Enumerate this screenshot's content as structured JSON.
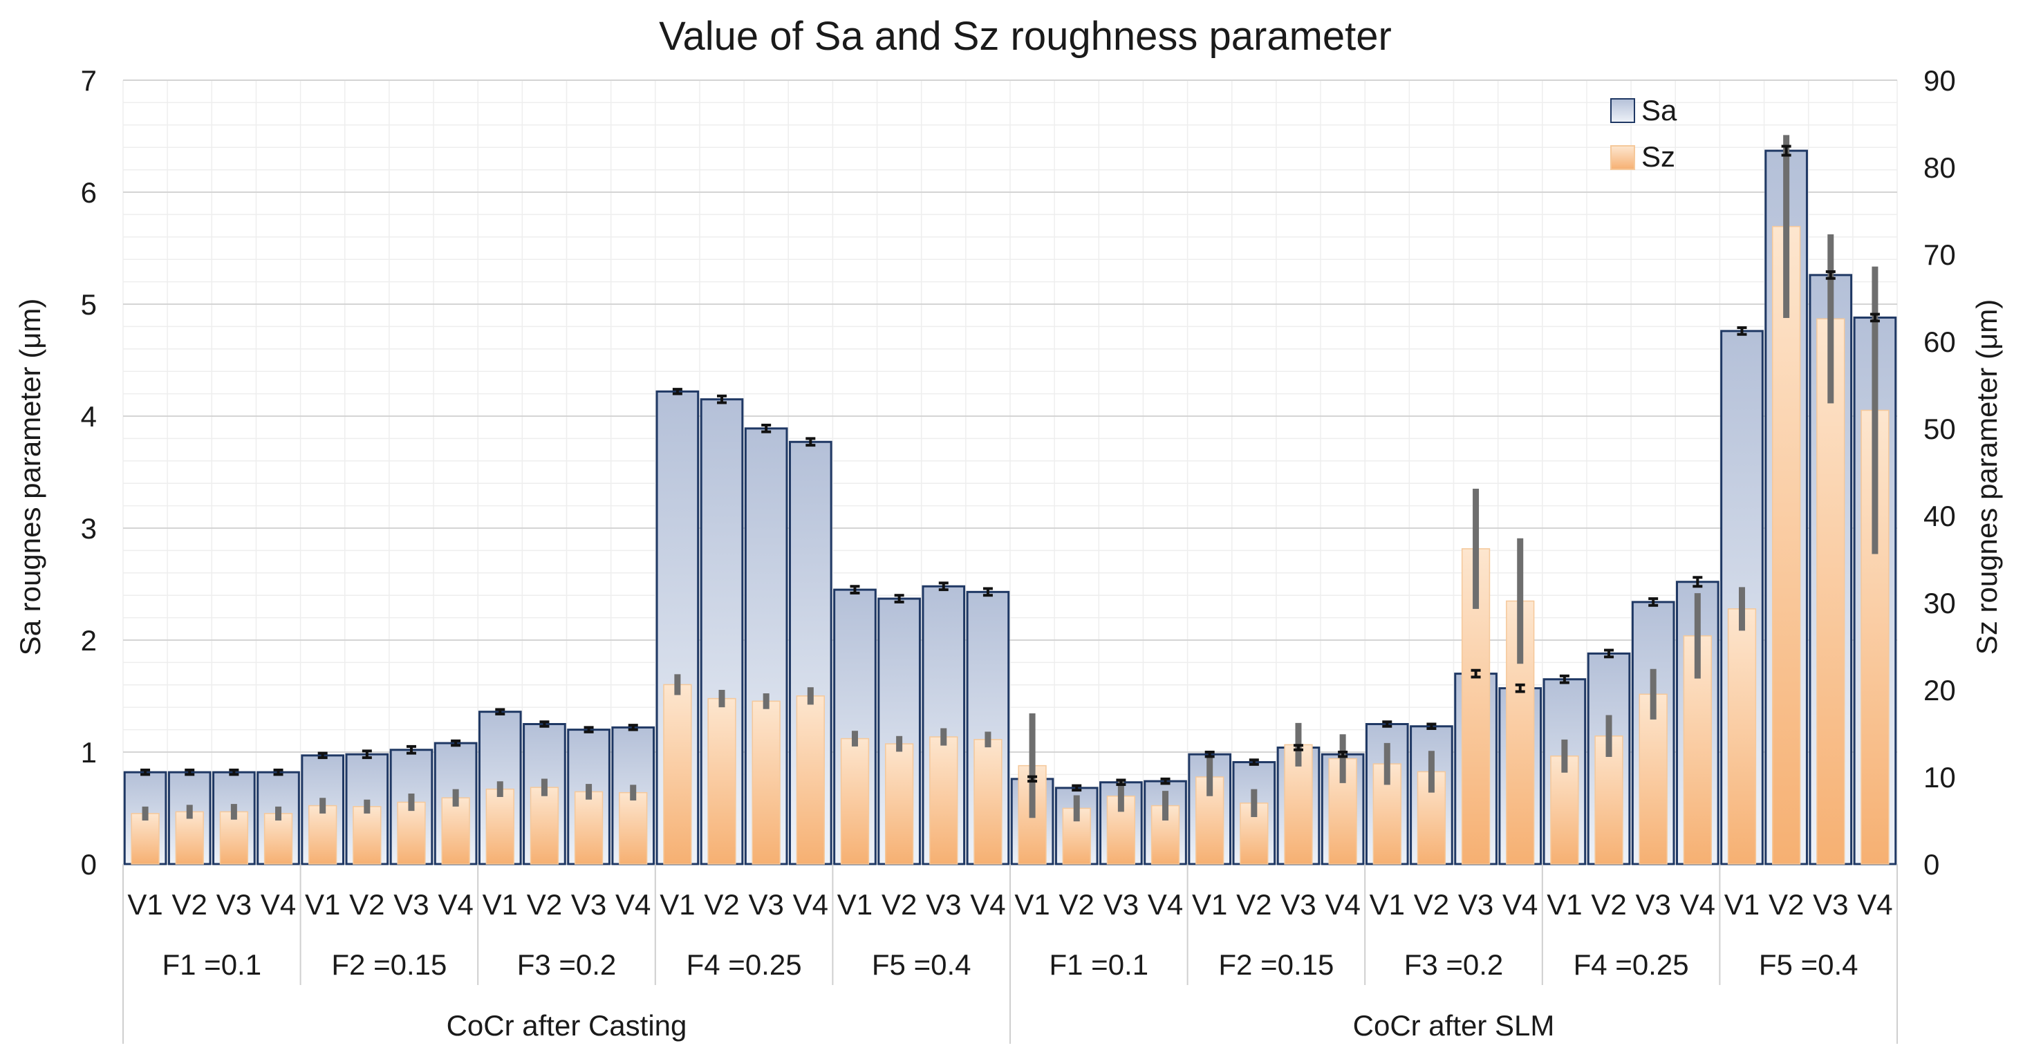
{
  "chart_data": {
    "type": "bar",
    "title": "Value of Sa and Sz roughness parameter",
    "ylabel_left": "Sa rougnes parameter (μm)",
    "ylabel_right": "Sz rougnes parameter (μm)",
    "ylim_left": [
      0,
      7
    ],
    "ylim_right": [
      0,
      90
    ],
    "yticks_left": [
      "0",
      "1",
      "2",
      "3",
      "4",
      "5",
      "6",
      "7"
    ],
    "yticks_right": [
      "0",
      "10",
      "20",
      "30",
      "40",
      "50",
      "60",
      "70",
      "80",
      "90"
    ],
    "groups": [
      "CoCr after Casting",
      "CoCr after SLM"
    ],
    "feeds": [
      "F1 =0.1",
      "F2 =0.15",
      "F3 =0.2",
      "F4 =0.25",
      "F5 =0.4",
      "F1 =0.1",
      "F2 =0.15",
      "F3 =0.2",
      "F4 =0.25",
      "F5 =0.4"
    ],
    "variants": [
      "V1",
      "V2",
      "V3",
      "V4"
    ],
    "legend": {
      "position": "top-right",
      "entries": [
        "Sa",
        "Sz"
      ]
    },
    "colors": {
      "sa_top": "#b4c0d8",
      "sa_bottom": "#eef2f8",
      "sa_border": "#1f3864",
      "sz_top": "#fde6cf",
      "sz_bottom": "#f6b072",
      "error_sa": "#111111",
      "error_sz": "#6e6e6e"
    },
    "series": [
      {
        "name": "Sa",
        "axis": "left",
        "values": [
          0.82,
          0.82,
          0.82,
          0.82,
          0.97,
          0.98,
          1.02,
          1.08,
          1.36,
          1.25,
          1.2,
          1.22,
          4.22,
          4.15,
          3.89,
          3.77,
          2.45,
          2.37,
          2.48,
          2.43,
          0.76,
          0.68,
          0.73,
          0.74,
          0.98,
          0.91,
          1.04,
          0.98,
          1.25,
          1.23,
          1.7,
          1.57,
          1.65,
          1.88,
          2.34,
          2.52,
          4.76,
          6.37,
          5.26,
          4.88
        ],
        "errors": [
          0.02,
          0.02,
          0.02,
          0.02,
          0.02,
          0.03,
          0.03,
          0.02,
          0.02,
          0.02,
          0.02,
          0.02,
          0.02,
          0.03,
          0.03,
          0.03,
          0.03,
          0.03,
          0.03,
          0.03,
          0.02,
          0.02,
          0.02,
          0.02,
          0.02,
          0.02,
          0.02,
          0.02,
          0.02,
          0.02,
          0.03,
          0.03,
          0.03,
          0.03,
          0.03,
          0.04,
          0.03,
          0.04,
          0.03,
          0.03
        ]
      },
      {
        "name": "Sz",
        "axis": "right",
        "values": [
          5.8,
          6.0,
          6.0,
          5.8,
          6.7,
          6.6,
          7.1,
          7.6,
          8.6,
          8.8,
          8.3,
          8.2,
          20.6,
          19.0,
          18.7,
          19.3,
          14.4,
          13.8,
          14.6,
          14.3,
          11.3,
          6.4,
          7.8,
          6.7,
          10.0,
          7.0,
          13.7,
          12.1,
          11.5,
          10.6,
          36.2,
          30.2,
          12.4,
          14.7,
          19.5,
          26.2,
          29.3,
          73.2,
          62.6,
          52.1
        ],
        "errors": [
          0.8,
          0.8,
          0.9,
          0.8,
          0.9,
          0.8,
          1.0,
          1.0,
          0.9,
          1.0,
          0.9,
          0.9,
          1.2,
          1.0,
          0.9,
          1.0,
          0.9,
          0.9,
          1.0,
          0.9,
          6.0,
          1.5,
          1.8,
          1.7,
          2.2,
          1.6,
          2.5,
          2.8,
          2.4,
          2.4,
          6.9,
          7.2,
          1.9,
          2.4,
          2.9,
          4.9,
          2.5,
          10.5,
          9.7,
          16.5
        ]
      }
    ]
  }
}
